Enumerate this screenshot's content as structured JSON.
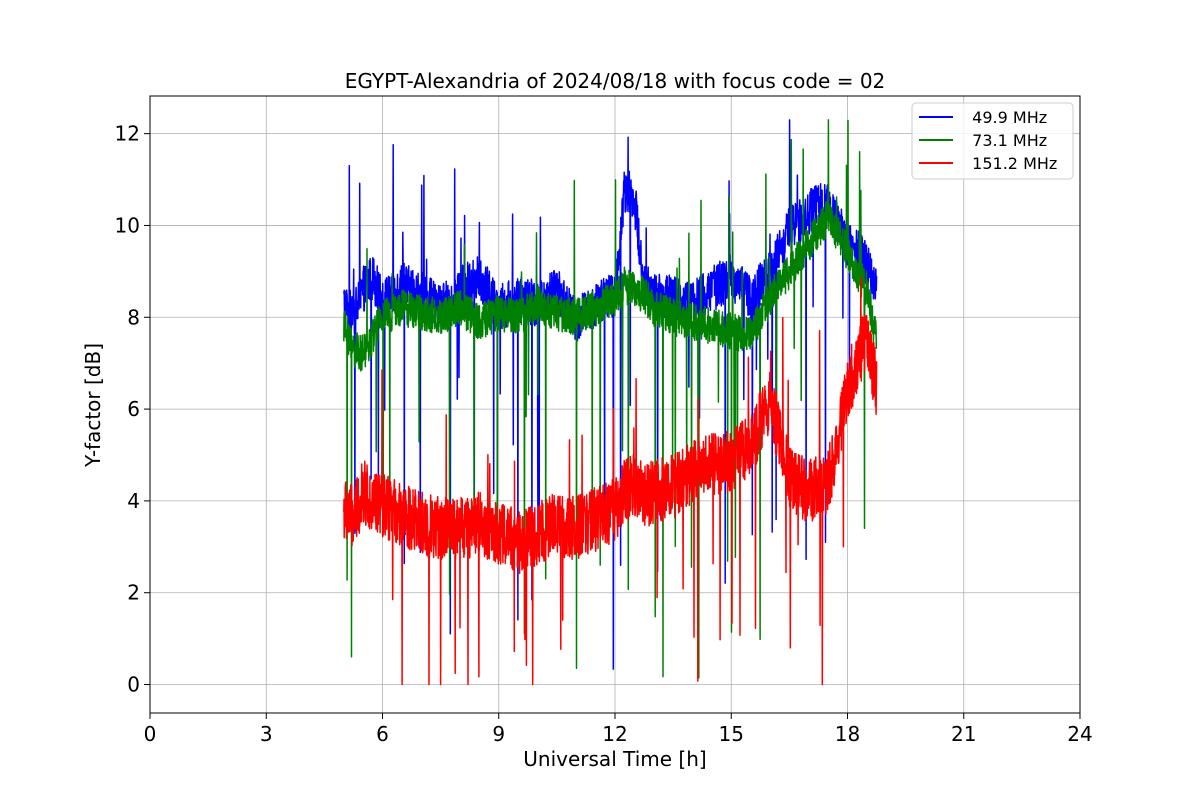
{
  "chart_data": {
    "type": "line",
    "title": "EGYPT-Alexandria of 2024/08/18 with focus code = 02",
    "xlabel": "Universal Time [h]",
    "ylabel": "Y-factor [dB]",
    "xlim": [
      0,
      24
    ],
    "ylim": [
      -0.62,
      12.82
    ],
    "xticks": [
      0,
      3,
      6,
      9,
      12,
      15,
      18,
      21,
      24
    ],
    "yticks": [
      0,
      2,
      4,
      6,
      8,
      10,
      12
    ],
    "grid": true,
    "legend_position": "top-right",
    "x_range_data": [
      5.0,
      18.75
    ],
    "series": [
      {
        "name": "  49.9 MHz",
        "color": "#0000ff",
        "x": [
          5.0,
          5.25,
          5.5,
          5.75,
          6.0,
          6.5,
          7.0,
          7.5,
          8.0,
          8.5,
          9.0,
          9.5,
          10.0,
          10.5,
          11.0,
          11.5,
          12.0,
          12.25,
          12.5,
          12.75,
          13.0,
          13.5,
          14.0,
          14.5,
          15.0,
          15.5,
          16.0,
          16.5,
          17.0,
          17.5,
          18.0,
          18.5,
          18.75
        ],
        "values": [
          8.3,
          8.0,
          8.6,
          8.9,
          8.3,
          8.7,
          8.5,
          8.2,
          8.6,
          8.9,
          8.2,
          8.4,
          8.3,
          8.6,
          7.9,
          8.3,
          8.5,
          10.8,
          10.6,
          8.7,
          8.5,
          8.4,
          8.3,
          8.6,
          8.9,
          8.4,
          9.0,
          9.9,
          10.3,
          10.5,
          9.6,
          9.2,
          8.6
        ],
        "amplitude": 0.5,
        "spikes": 40
      },
      {
        "name": "  73.1 MHz",
        "color": "#008000",
        "x": [
          5.0,
          5.25,
          5.5,
          5.75,
          6.0,
          6.5,
          7.0,
          7.5,
          8.0,
          8.5,
          9.0,
          9.5,
          10.0,
          10.5,
          11.0,
          11.5,
          12.0,
          12.25,
          12.5,
          12.75,
          13.0,
          13.5,
          14.0,
          14.5,
          15.0,
          15.5,
          16.0,
          16.5,
          17.0,
          17.5,
          18.0,
          18.5,
          18.75
        ],
        "values": [
          7.8,
          7.3,
          7.2,
          7.6,
          8.0,
          8.2,
          8.1,
          8.0,
          8.2,
          7.9,
          8.1,
          8.0,
          8.3,
          8.1,
          8.0,
          8.2,
          8.4,
          8.7,
          8.6,
          8.5,
          8.2,
          8.0,
          7.9,
          7.8,
          7.7,
          7.6,
          8.4,
          9.0,
          9.6,
          10.2,
          9.4,
          8.6,
          7.5
        ],
        "amplitude": 0.4,
        "spikes": 45
      },
      {
        "name": "  151.2 MHz",
        "color": "#ff0000",
        "x": [
          5.0,
          5.25,
          5.5,
          5.75,
          6.0,
          6.5,
          7.0,
          7.5,
          8.0,
          8.5,
          9.0,
          9.5,
          10.0,
          10.5,
          11.0,
          11.5,
          12.0,
          12.25,
          12.5,
          12.75,
          13.0,
          13.5,
          14.0,
          14.5,
          15.0,
          15.5,
          16.0,
          16.5,
          17.0,
          17.5,
          18.0,
          18.5,
          18.75
        ],
        "values": [
          3.8,
          3.6,
          4.2,
          4.0,
          3.9,
          3.7,
          3.5,
          3.4,
          3.4,
          3.5,
          3.3,
          3.1,
          3.3,
          3.5,
          3.4,
          3.6,
          3.8,
          4.2,
          4.4,
          4.1,
          4.2,
          4.3,
          4.6,
          4.8,
          4.9,
          5.2,
          6.2,
          4.5,
          4.2,
          4.4,
          6.4,
          7.6,
          6.5
        ],
        "amplitude": 0.7,
        "spikes": 35
      }
    ]
  }
}
